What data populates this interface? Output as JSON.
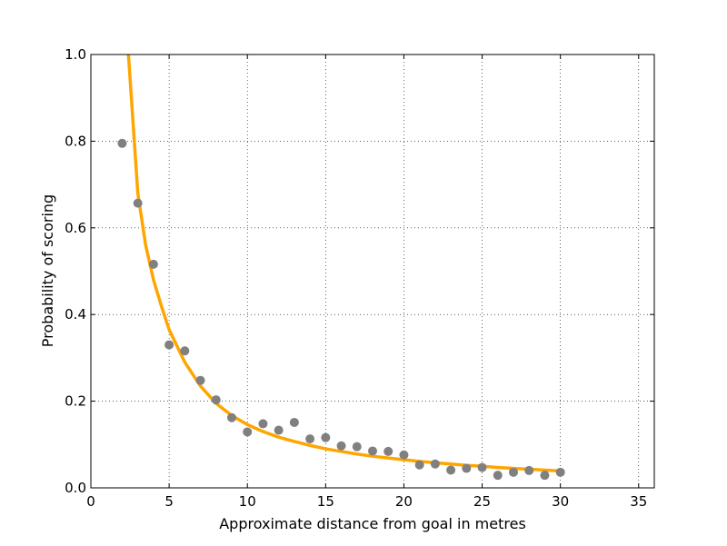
{
  "chart_data": {
    "type": "scatter",
    "title": "",
    "xlabel": "Approximate distance from goal in metres",
    "ylabel": "Probability of scoring",
    "xlim": [
      0,
      36
    ],
    "ylim": [
      0,
      1.0
    ],
    "x_ticks": [
      "0",
      "5",
      "10",
      "15",
      "20",
      "25",
      "30",
      "35"
    ],
    "y_ticks": [
      "0.0",
      "0.2",
      "0.4",
      "0.6",
      "0.8",
      "1.0"
    ],
    "grid": true,
    "colors": {
      "points": "#808080",
      "fit": "#FFA500"
    },
    "series": [
      {
        "kind": "points",
        "x": [
          2,
          3,
          4,
          5,
          6,
          7,
          8,
          9,
          10,
          11,
          12,
          13,
          14,
          15,
          16,
          17,
          18,
          19,
          20,
          21,
          22,
          23,
          24,
          25,
          26,
          27,
          28,
          29,
          30
        ],
        "y": [
          0.795,
          0.657,
          0.516,
          0.33,
          0.316,
          0.248,
          0.203,
          0.162,
          0.129,
          0.148,
          0.133,
          0.151,
          0.113,
          0.116,
          0.097,
          0.095,
          0.085,
          0.084,
          0.076,
          0.053,
          0.055,
          0.041,
          0.045,
          0.047,
          0.029,
          0.036,
          0.04,
          0.029,
          0.036
        ]
      },
      {
        "kind": "line",
        "x": [
          2.4,
          2.7,
          3,
          3.5,
          4,
          4.5,
          5,
          6,
          7,
          8,
          9,
          10,
          11,
          12,
          13,
          14,
          15,
          16,
          17,
          18,
          19,
          20,
          21,
          22,
          23,
          24,
          25,
          26,
          27,
          28,
          29,
          30
        ],
        "y": [
          1.0,
          0.84,
          0.68,
          0.56,
          0.48,
          0.42,
          0.365,
          0.29,
          0.235,
          0.195,
          0.167,
          0.146,
          0.13,
          0.117,
          0.107,
          0.098,
          0.09,
          0.084,
          0.078,
          0.073,
          0.069,
          0.065,
          0.061,
          0.058,
          0.055,
          0.052,
          0.05,
          0.047,
          0.045,
          0.043,
          0.041,
          0.039
        ]
      }
    ]
  }
}
